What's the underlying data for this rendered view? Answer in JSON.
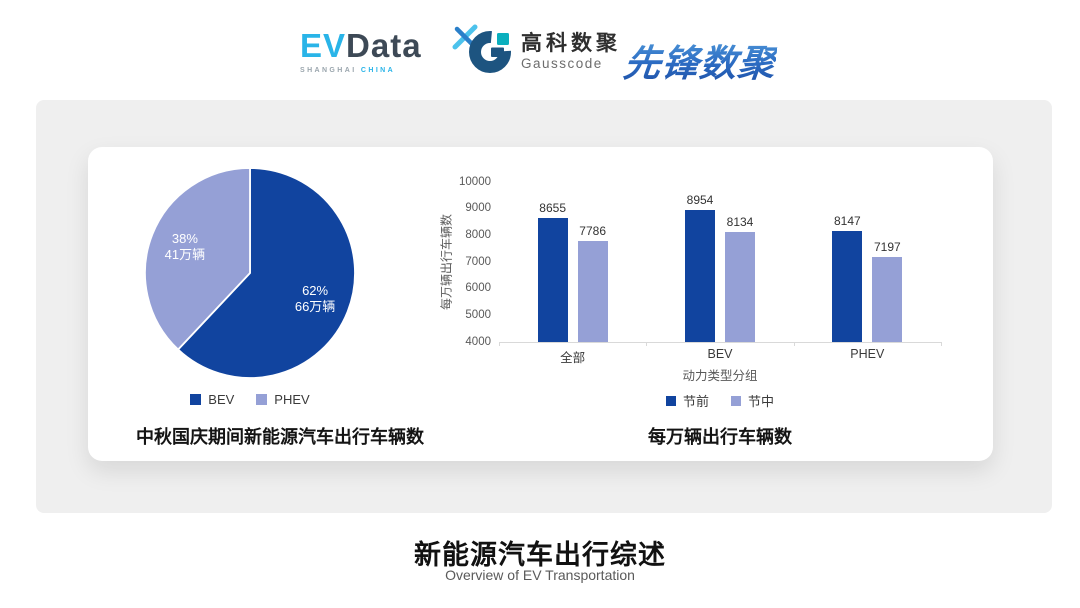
{
  "header": {
    "evdata": {
      "ev": "EV",
      "data": "Data",
      "tagline_left": "SHANGHAI",
      "tagline_right": "CHINA"
    },
    "gausscode": {
      "cn": "高科数聚",
      "en": "Gausscode"
    },
    "pioneer": {
      "text": "先锋数聚"
    }
  },
  "colors": {
    "primary_dark_blue": "#11449f",
    "light_periwinkle": "#95a0d6",
    "panel_gray": "#efefef",
    "evdata_cyan": "#29b4e8",
    "evdata_slate": "#3d4956",
    "gauss_navy": "#1d5480",
    "gauss_teal": "#0aafbe",
    "pioneer_blue": "#2d6cc0",
    "axis_gray": "#d9d9d9"
  },
  "chart_data": [
    {
      "type": "pie",
      "title": "中秋国庆期间新能源汽车出行车辆数",
      "slices": [
        {
          "name": "BEV",
          "percent": 62,
          "amount": "66万辆",
          "color": "#11449f"
        },
        {
          "name": "PHEV",
          "percent": 38,
          "amount": "41万辆",
          "color": "#95a0d6"
        }
      ],
      "legend_position": "bottom"
    },
    {
      "type": "bar",
      "title": "每万辆出行车辆数",
      "ylabel": "每万辆出行车辆数",
      "xlabel": "动力类型分组",
      "categories": [
        "全部",
        "BEV",
        "PHEV"
      ],
      "series": [
        {
          "name": "节前",
          "color": "#11449f",
          "values": [
            8655,
            8954,
            8147
          ]
        },
        {
          "name": "节中",
          "color": "#95a0d6",
          "values": [
            7786,
            8134,
            7197
          ]
        }
      ],
      "ylim": [
        4000,
        10000
      ],
      "yticks": [
        4000,
        5000,
        6000,
        7000,
        8000,
        9000,
        10000
      ],
      "grid": false,
      "legend_position": "bottom"
    }
  ],
  "footer": {
    "title": "新能源汽车出行综述",
    "subtitle": "Overview of EV Transportation"
  }
}
